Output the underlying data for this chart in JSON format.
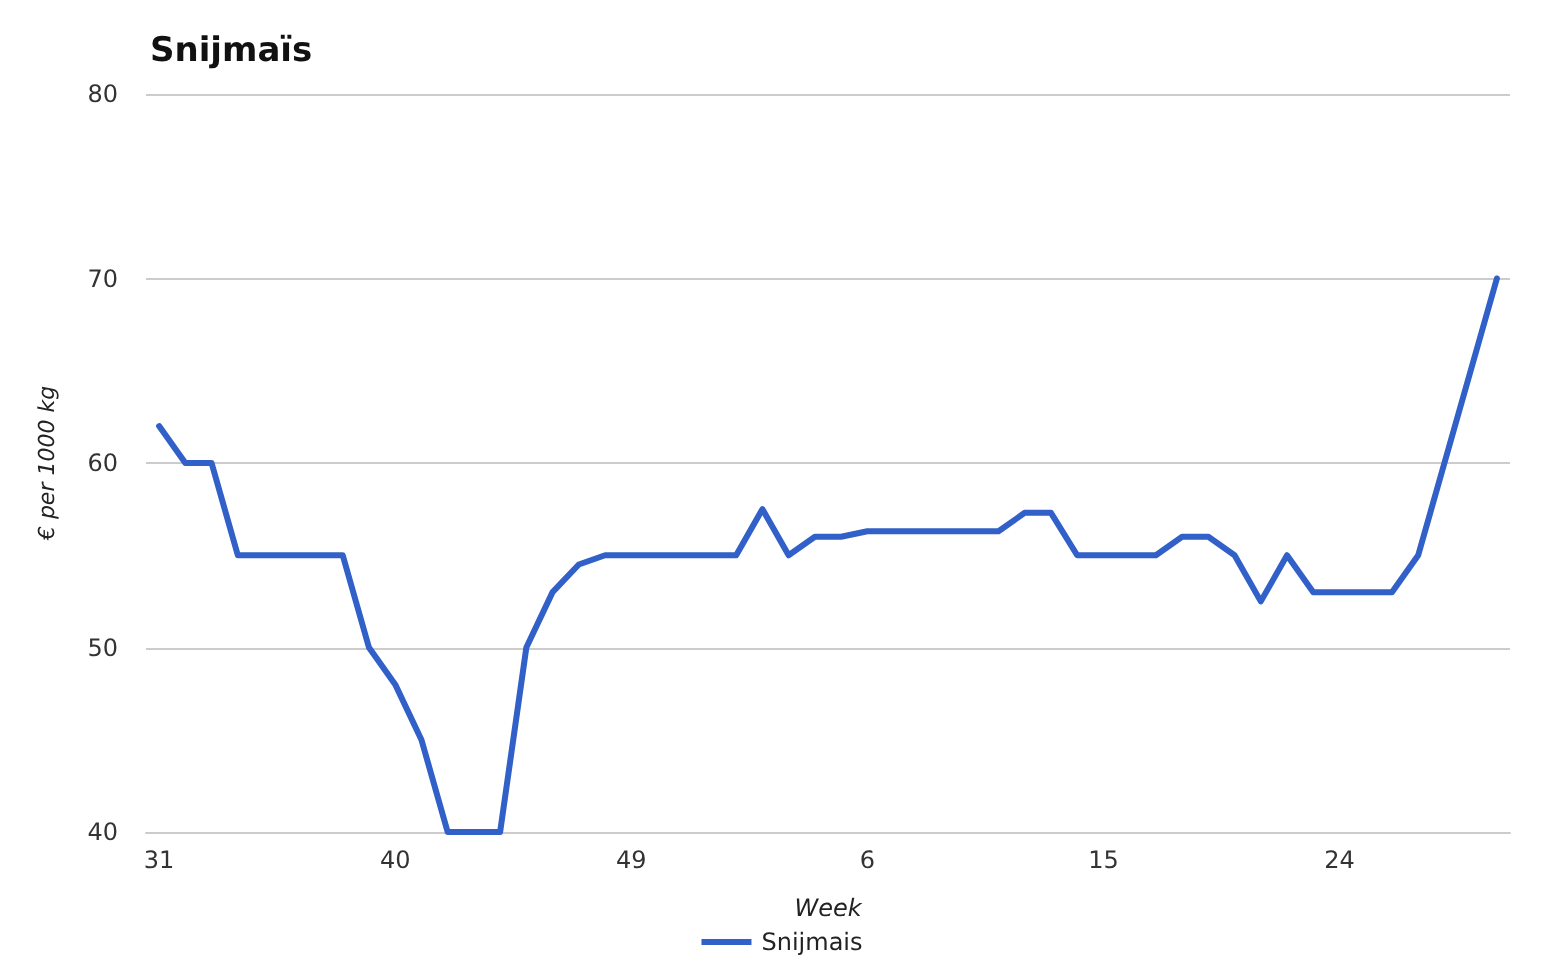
{
  "chart_data": {
    "type": "line",
    "title": "Snijmaïs",
    "xlabel": "Week",
    "ylabel": "€ per 1000 kg",
    "categories": [
      "31",
      null,
      null,
      null,
      null,
      null,
      null,
      null,
      null,
      "40",
      null,
      null,
      null,
      null,
      null,
      null,
      null,
      null,
      "49",
      null,
      null,
      null,
      null,
      null,
      null,
      null,
      null,
      "6",
      null,
      null,
      null,
      null,
      null,
      null,
      null,
      null,
      "15",
      null,
      null,
      null,
      null,
      null,
      null,
      null,
      null,
      "24",
      null,
      null,
      null,
      null,
      null,
      null
    ],
    "series": [
      {
        "name": "Snijmais",
        "color": "#3060c8",
        "values": [
          62,
          60,
          60,
          55,
          55,
          55,
          55,
          55,
          50,
          48,
          45,
          40,
          40,
          40,
          50,
          53,
          54.5,
          55,
          55,
          55,
          55,
          55,
          55,
          57.5,
          55,
          56,
          56,
          56.3,
          56.3,
          56.3,
          56.3,
          56.3,
          56.3,
          57.3,
          57.3,
          55,
          55,
          55,
          55,
          56,
          56,
          55,
          52.5,
          55,
          53,
          53,
          53,
          53,
          55,
          60,
          65,
          70
        ]
      }
    ],
    "ylim": [
      40,
      80
    ],
    "yticks": [
      40,
      50,
      60,
      70,
      80
    ],
    "grid": "y",
    "legend": "bottom",
    "marker": "none",
    "line_style": "solid"
  }
}
